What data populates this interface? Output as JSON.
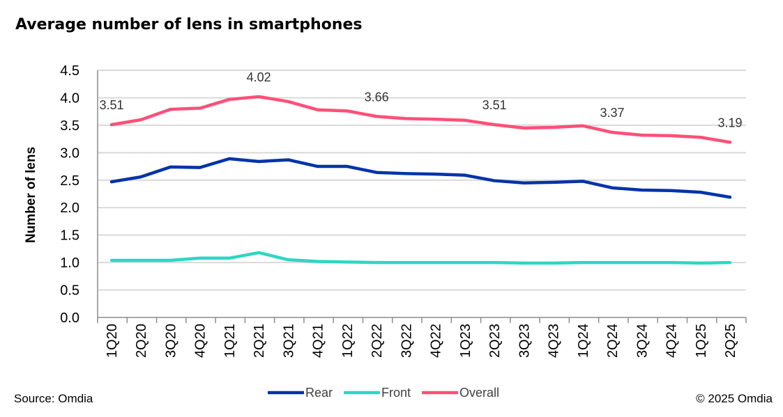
{
  "chart_data": {
    "type": "line",
    "title": "Average number of lens in smartphones",
    "ylabel": "Number of lens",
    "xlabel": "",
    "ylim": [
      0,
      4.5
    ],
    "yticks": [
      "0.0",
      "0.5",
      "1.0",
      "1.5",
      "2.0",
      "2.5",
      "3.0",
      "3.5",
      "4.0",
      "4.5"
    ],
    "grid": true,
    "legend": "bottom",
    "categories": [
      "1Q20",
      "2Q20",
      "3Q20",
      "4Q20",
      "1Q21",
      "2Q21",
      "3Q21",
      "4Q21",
      "1Q22",
      "2Q22",
      "3Q22",
      "4Q22",
      "1Q23",
      "2Q23",
      "3Q23",
      "4Q23",
      "1Q24",
      "2Q24",
      "3Q24",
      "4Q24",
      "1Q25",
      "2Q25"
    ],
    "series": [
      {
        "name": "Rear",
        "color": "#0033a8",
        "values": [
          2.47,
          2.56,
          2.74,
          2.73,
          2.89,
          2.84,
          2.87,
          2.75,
          2.75,
          2.64,
          2.62,
          2.61,
          2.59,
          2.49,
          2.45,
          2.46,
          2.48,
          2.36,
          2.32,
          2.31,
          2.28,
          2.19
        ]
      },
      {
        "name": "Front",
        "color": "#2ed6c4",
        "values": [
          1.04,
          1.04,
          1.04,
          1.08,
          1.08,
          1.18,
          1.05,
          1.02,
          1.01,
          1.0,
          1.0,
          1.0,
          1.0,
          1.0,
          0.99,
          0.99,
          1.0,
          1.0,
          1.0,
          1.0,
          0.99,
          1.0
        ]
      },
      {
        "name": "Overall",
        "color": "#ff4f78",
        "values": [
          3.51,
          3.6,
          3.79,
          3.81,
          3.97,
          4.02,
          3.93,
          3.78,
          3.76,
          3.66,
          3.62,
          3.61,
          3.59,
          3.51,
          3.45,
          3.46,
          3.49,
          3.37,
          3.32,
          3.31,
          3.28,
          3.19
        ]
      }
    ],
    "data_labels": [
      {
        "series": "Overall",
        "category": "1Q20",
        "text": "3.51"
      },
      {
        "series": "Overall",
        "category": "2Q21",
        "text": "4.02"
      },
      {
        "series": "Overall",
        "category": "2Q22",
        "text": "3.66"
      },
      {
        "series": "Overall",
        "category": "2Q23",
        "text": "3.51"
      },
      {
        "series": "Overall",
        "category": "2Q24",
        "text": "3.37"
      },
      {
        "series": "Overall",
        "category": "2Q25",
        "text": "3.19"
      }
    ]
  },
  "footer": {
    "source": "Source: Omdia",
    "copyright": "© 2025 Omdia"
  }
}
